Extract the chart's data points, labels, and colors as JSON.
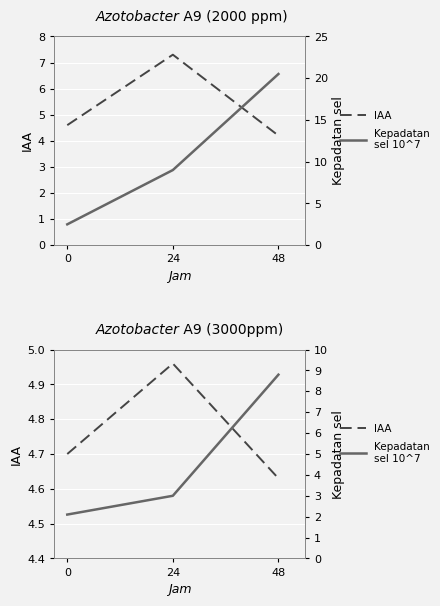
{
  "chart1": {
    "title_italic": "Azotobacter",
    "title_normal": " A9 (2000 ppm)",
    "x": [
      0,
      24,
      48
    ],
    "iaa": [
      4.6,
      7.3,
      4.2
    ],
    "kepadatan": [
      2.5,
      9.0,
      20.5
    ],
    "ylabel_left": "IAA",
    "ylabel_right": "Kepadatan sel",
    "xlabel": "Jam",
    "ylim_left": [
      0,
      8
    ],
    "ylim_right": [
      0,
      25
    ],
    "yticks_left": [
      0,
      1,
      2,
      3,
      4,
      5,
      6,
      7,
      8
    ],
    "yticks_right": [
      0,
      5,
      10,
      15,
      20,
      25
    ],
    "legend_iaa": "IAA",
    "legend_kepadatan": "Kepadatan\nsel 10^7"
  },
  "chart2": {
    "title_italic": "Azotobacter",
    "title_normal": " A9 (3000ppm)",
    "x": [
      0,
      24,
      48
    ],
    "iaa": [
      4.7,
      4.96,
      4.63
    ],
    "kepadatan": [
      2.1,
      3.0,
      8.8
    ],
    "ylabel_left": "IAA",
    "ylabel_right": "Kepadatan sel",
    "xlabel": "Jam",
    "ylim_left": [
      4.4,
      5.0
    ],
    "ylim_right": [
      0,
      10
    ],
    "yticks_left": [
      4.4,
      4.5,
      4.6,
      4.7,
      4.8,
      4.9,
      5.0
    ],
    "yticks_right": [
      0,
      1,
      2,
      3,
      4,
      5,
      6,
      7,
      8,
      9,
      10
    ],
    "legend_iaa": "IAA",
    "legend_kepadatan": "Kepadatan\nsel 10^7"
  },
  "line_color_iaa": "#444444",
  "line_color_kepadatan": "#666666",
  "bg_color": "#f2f2f2",
  "grid_color": "#ffffff"
}
